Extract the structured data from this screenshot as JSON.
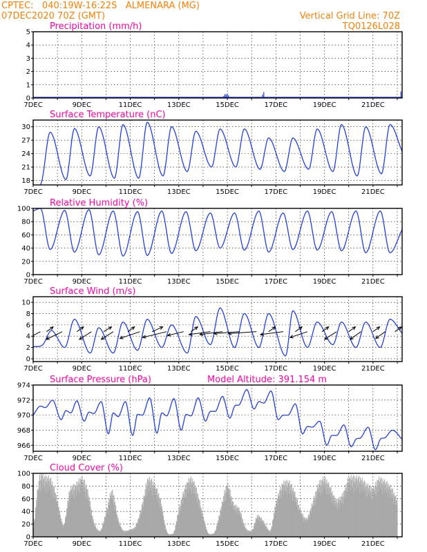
{
  "header": {
    "line1": "CPTEC:   040:19W-16:22S   ALMENARA (MG)",
    "line2": "07DEC2020 70Z (GMT)",
    "right1": "Vertical Grid Line: 70Z",
    "right2": "TQ0126L028"
  },
  "colors": {
    "line": "#1f3fe0",
    "bars": "#a9a9a9",
    "header": "#ff7f00",
    "title": "#ff00aa",
    "arrows": "#000000"
  },
  "chart_data": [
    {
      "type": "bar",
      "title": "Precipitation (mm/h)",
      "xlim": [
        7,
        22.2
      ],
      "ylim": [
        0,
        5
      ],
      "yticks": [
        0,
        1,
        2,
        3,
        4,
        5
      ],
      "xticks": [
        "7DEC",
        "9DEC",
        "11DEC",
        "13DEC",
        "15DEC",
        "17DEC",
        "19DEC",
        "21DEC"
      ],
      "x": [
        14.85,
        14.9,
        14.95,
        15.0,
        15.05,
        16.45,
        16.5,
        22.15
      ],
      "values": [
        0.15,
        0.3,
        0.25,
        0.35,
        0.2,
        0.25,
        0.45,
        0.5
      ]
    },
    {
      "type": "line",
      "title": "Surface Temperature (nC)",
      "xlim": [
        7,
        22.2
      ],
      "ylim": [
        17,
        31.5
      ],
      "yticks": [
        18,
        21,
        24,
        27,
        30
      ],
      "xticks": [
        "7DEC",
        "9DEC",
        "11DEC",
        "13DEC",
        "15DEC",
        "17DEC",
        "19DEC",
        "21DEC"
      ],
      "max_times": [
        7.7,
        8.7,
        9.7,
        10.7,
        11.7,
        12.7,
        13.7,
        14.7,
        15.7,
        16.7,
        17.7,
        18.7,
        19.7,
        20.7,
        21.7
      ],
      "max_values": [
        28.8,
        29.6,
        30.0,
        30.5,
        31.0,
        30.0,
        29.0,
        29.5,
        29.5,
        27.5,
        27.5,
        29.5,
        30.5,
        30.0,
        30.5
      ],
      "min_times": [
        7.35,
        8.35,
        9.35,
        10.35,
        11.35,
        12.35,
        13.35,
        14.35,
        15.35,
        16.35,
        17.35,
        18.35,
        19.35,
        20.35,
        21.35
      ],
      "min_values": [
        17.7,
        18.2,
        19.0,
        18.5,
        18.5,
        19.0,
        20.0,
        21.0,
        21.0,
        20.5,
        20.0,
        20.5,
        20.0,
        19.0,
        19.5
      ],
      "end_value": 24.5
    },
    {
      "type": "line",
      "title": "Relative Humidity (%)",
      "xlim": [
        7,
        22.2
      ],
      "ylim": [
        0,
        100
      ],
      "yticks": [
        0,
        20,
        40,
        60,
        80,
        100
      ],
      "xticks": [
        "7DEC",
        "9DEC",
        "11DEC",
        "13DEC",
        "15DEC",
        "17DEC",
        "19DEC",
        "21DEC"
      ],
      "max_times": [
        7.3,
        8.3,
        9.3,
        10.3,
        11.3,
        12.3,
        13.3,
        14.3,
        15.3,
        16.3,
        17.3,
        18.3,
        19.3,
        20.3,
        21.3
      ],
      "max_values": [
        100,
        97,
        98,
        96,
        95,
        96,
        95,
        93,
        93,
        96,
        93,
        96,
        95,
        96,
        96
      ],
      "min_times": [
        7.7,
        8.7,
        9.7,
        10.7,
        11.7,
        12.7,
        13.7,
        14.7,
        15.7,
        16.7,
        17.7,
        18.7,
        19.7,
        20.7,
        21.7
      ],
      "min_values": [
        38,
        34,
        30,
        28,
        29,
        32,
        36,
        40,
        37,
        34,
        38,
        37,
        36,
        33,
        33
      ],
      "start_value": 96,
      "end_value": 68
    },
    {
      "type": "line",
      "title": "Surface Wind (m/s)",
      "xlim": [
        7,
        22.2
      ],
      "ylim": [
        -0.5,
        11
      ],
      "yticks": [
        0,
        2,
        4,
        6,
        8,
        10
      ],
      "xticks": [
        "7DEC",
        "9DEC",
        "11DEC",
        "13DEC",
        "15DEC",
        "17DEC",
        "19DEC",
        "21DEC"
      ],
      "max_times": [
        7.75,
        8.7,
        9.7,
        10.7,
        11.7,
        12.7,
        13.7,
        14.7,
        15.7,
        16.7,
        17.7,
        18.7,
        19.7,
        20.7,
        21.7
      ],
      "max_values": [
        5.0,
        7.0,
        5.5,
        6.5,
        7.0,
        6.0,
        7.5,
        9.0,
        8.0,
        8.0,
        8.5,
        6.5,
        6.5,
        6.5,
        7.0
      ],
      "min_times": [
        7.4,
        8.3,
        9.35,
        10.3,
        11.3,
        12.3,
        13.35,
        14.3,
        15.3,
        16.3,
        17.4,
        18.3,
        19.35,
        20.3,
        21.3
      ],
      "min_values": [
        2.5,
        2.0,
        1.0,
        1.0,
        1.5,
        2.0,
        1.0,
        2.5,
        2.0,
        2.0,
        0.5,
        2.0,
        2.5,
        2.0,
        2.0
      ],
      "end_value": 4.5,
      "vectors": {
        "times": [
          7.3,
          7.55,
          8.2,
          8.8,
          9.4,
          9.9,
          10.3,
          10.9,
          11.4,
          11.9,
          12.5,
          13.2,
          13.5,
          14.3,
          14.8,
          15.5,
          16.2,
          16.7,
          17.3,
          17.8,
          18.3,
          18.9,
          19.5,
          20.0,
          20.5,
          21.0,
          21.5,
          21.9
        ],
        "dx": [
          -0.7,
          0.5,
          -1.2,
          0.5,
          -0.9,
          0.6,
          -0.9,
          0.5,
          -1.5,
          0.8,
          -1.8,
          -1.2,
          0.5,
          -1.6,
          -1.7,
          -1.9,
          -2.1,
          0.5,
          -1.7,
          0.5,
          -1.3,
          0.5,
          -0.9,
          0.5,
          -0.8,
          0.5,
          -0.7,
          0.5
        ],
        "dy": [
          -0.5,
          0.5,
          -0.8,
          0.5,
          -0.8,
          0.5,
          -0.8,
          0.5,
          -0.7,
          0.5,
          -0.6,
          -0.4,
          0.5,
          -0.3,
          -0.3,
          -0.2,
          -0.2,
          0.5,
          -0.3,
          0.5,
          -0.6,
          0.5,
          -0.8,
          0.5,
          -0.8,
          0.5,
          -0.7,
          0.5
        ]
      }
    },
    {
      "type": "line",
      "title": "Surface Pressure (hPa)",
      "subtitle": "Model Altitude: 391.154 m",
      "xlim": [
        7,
        22.2
      ],
      "ylim": [
        965.2,
        974
      ],
      "yticks": [
        966,
        968,
        970,
        972,
        974
      ],
      "xticks": [
        "7DEC",
        "9DEC",
        "11DEC",
        "13DEC",
        "15DEC",
        "17DEC",
        "19DEC",
        "21DEC"
      ],
      "points_x": [
        7.0,
        7.3,
        7.5,
        7.8,
        8.15,
        8.35,
        8.55,
        8.8,
        9.1,
        9.3,
        9.5,
        9.8,
        10.1,
        10.3,
        10.5,
        10.8,
        11.1,
        11.3,
        11.5,
        11.8,
        12.1,
        12.3,
        12.5,
        12.8,
        13.1,
        13.3,
        13.5,
        13.8,
        14.1,
        14.3,
        14.5,
        14.8,
        15.1,
        15.3,
        15.5,
        15.8,
        16.1,
        16.3,
        16.5,
        16.8,
        17.1,
        17.3,
        17.5,
        17.8,
        18.1,
        18.3,
        18.5,
        18.8,
        19.1,
        19.3,
        19.5,
        19.8,
        20.1,
        20.3,
        20.5,
        20.8,
        21.1,
        21.3,
        21.5,
        21.8,
        22.2
      ],
      "points_y": [
        970.0,
        971.2,
        971.0,
        972.0,
        969.4,
        970.6,
        970.3,
        971.9,
        969.2,
        970.4,
        970.2,
        971.8,
        967.5,
        970.3,
        969.8,
        971.8,
        967.3,
        970.1,
        970.0,
        972.3,
        967.6,
        970.3,
        969.9,
        972.2,
        968.0,
        970.1,
        969.9,
        972.3,
        969.2,
        970.5,
        970.5,
        972.5,
        969.6,
        971.2,
        971.4,
        973.4,
        970.8,
        971.8,
        971.6,
        973.2,
        969.4,
        970.0,
        970.0,
        971.5,
        967.5,
        968.5,
        968.4,
        969.2,
        966.0,
        967.3,
        967.3,
        968.7,
        965.8,
        966.8,
        967.0,
        968.4,
        965.4,
        966.8,
        967.0,
        968.0,
        966.8
      ]
    },
    {
      "type": "bar",
      "title": "Cloud Cover (%)",
      "xlim": [
        7,
        22.2
      ],
      "ylim": [
        0,
        100
      ],
      "yticks": [
        0,
        20,
        40,
        60,
        80,
        100
      ],
      "xticks": [
        "7DEC",
        "9DEC",
        "11DEC",
        "13DEC",
        "15DEC",
        "17DEC",
        "19DEC",
        "21DEC"
      ],
      "x": [
        7.0,
        7.25,
        7.5,
        7.75,
        8.0,
        8.25,
        8.5,
        8.75,
        9.0,
        9.25,
        9.5,
        9.75,
        10.0,
        10.25,
        10.5,
        10.75,
        11.0,
        11.25,
        11.5,
        11.75,
        12.0,
        12.25,
        12.5,
        12.75,
        13.0,
        13.25,
        13.5,
        13.75,
        14.0,
        14.25,
        14.5,
        14.75,
        15.0,
        15.25,
        15.5,
        15.75,
        16.0,
        16.25,
        16.5,
        16.75,
        17.0,
        17.25,
        17.5,
        17.75,
        18.0,
        18.25,
        18.5,
        18.75,
        19.0,
        19.25,
        19.5,
        19.75,
        20.0,
        20.25,
        20.5,
        20.75,
        21.0,
        21.25,
        21.5,
        21.75,
        22.0
      ],
      "values": [
        10,
        95,
        97,
        92,
        60,
        20,
        75,
        85,
        95,
        75,
        25,
        10,
        40,
        75,
        30,
        10,
        12,
        20,
        55,
        95,
        85,
        60,
        10,
        5,
        45,
        80,
        95,
        75,
        35,
        5,
        10,
        50,
        85,
        55,
        45,
        15,
        10,
        35,
        25,
        10,
        55,
        85,
        90,
        75,
        45,
        30,
        55,
        85,
        95,
        80,
        60,
        70,
        95,
        97,
        95,
        85,
        80,
        95,
        90,
        80,
        60
      ]
    }
  ]
}
